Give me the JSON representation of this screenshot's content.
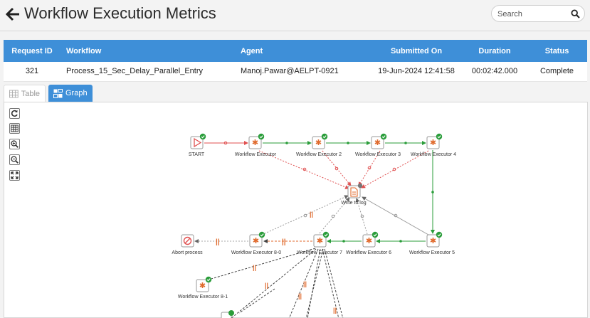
{
  "header": {
    "title": "Workflow Execution Metrics",
    "search_placeholder": "Search"
  },
  "table": {
    "columns": [
      "Request ID",
      "Workflow",
      "Agent",
      "Submitted On",
      "Duration",
      "Status"
    ],
    "row": {
      "request_id": "321",
      "workflow": "Process_15_Sec_Delay_Parallel_Entry",
      "agent": "Manoj.Pawar@AELPT-0921",
      "submitted_on": "19-Jun-2024 12:41:58",
      "duration": "00:02:42.000",
      "status": "Complete"
    }
  },
  "tabs": {
    "table": "Table",
    "graph": "Graph",
    "active": "Graph"
  },
  "graph": {
    "toolbar": [
      "refresh-icon",
      "grid-icon",
      "zoom-in-icon",
      "zoom-out-icon",
      "fit-icon"
    ],
    "nodes": {
      "start": "START",
      "we": "Workflow Executor",
      "we2": "Workflow Executor 2",
      "we3": "Workflow Executor 3",
      "we4": "Workflow Executor 4",
      "log": "Write to log",
      "abort": "Abort process",
      "we80": "Workflow Executor 8-0",
      "we7": "Workflow Executor 7",
      "we6": "Workflow Executor 6",
      "we5": "Workflow Executor 5",
      "we81": "Workflow Executor 8-1"
    }
  },
  "colors": {
    "accent": "#3e8fd8",
    "success": "#2a9d3a",
    "orange": "#e06a2c",
    "error": "#e05050"
  }
}
